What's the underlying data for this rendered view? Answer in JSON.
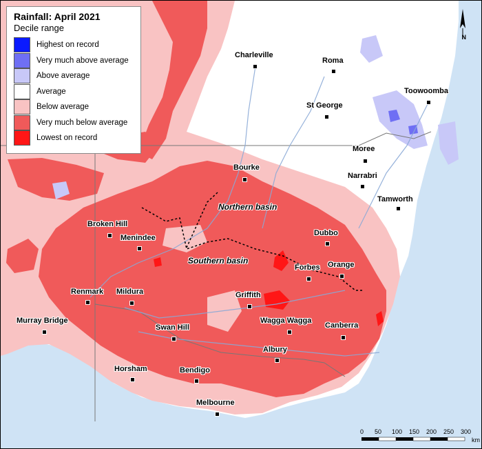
{
  "legend": {
    "title": "Rainfall: April 2021",
    "subtitle": "Decile range",
    "items": [
      {
        "label": "Highest on record",
        "color": "#0a1aff"
      },
      {
        "label": "Very much above average",
        "color": "#6f6ff4"
      },
      {
        "label": "Above average",
        "color": "#c8c8f8"
      },
      {
        "label": "Average",
        "color": "#ffffff"
      },
      {
        "label": "Below average",
        "color": "#f9c3c3"
      },
      {
        "label": "Very much below average",
        "color": "#f05a5a"
      },
      {
        "label": "Lowest on record",
        "color": "#ff1616"
      }
    ]
  },
  "places": {
    "charleville": "Charleville",
    "roma": "Roma",
    "toowoomba": "Toowoomba",
    "st_george": "St George",
    "moree": "Moree",
    "bourke": "Bourke",
    "narrabri": "Narrabri",
    "tamworth": "Tamworth",
    "broken_hill": "Broken Hill",
    "menindee": "Menindee",
    "dubbo": "Dubbo",
    "forbes": "Forbes",
    "orange": "Orange",
    "renmark": "Renmark",
    "mildura": "Mildura",
    "griffith": "Griffith",
    "murray_bridge": "Murray Bridge",
    "wagga_wagga": "Wagga Wagga",
    "canberra": "Canberra",
    "swan_hill": "Swan Hill",
    "albury": "Albury",
    "horsham": "Horsham",
    "bendigo": "Bendigo",
    "melbourne": "Melbourne"
  },
  "basins": {
    "northern": "Northern basin",
    "southern": "Southern basin"
  },
  "scale_bar": {
    "ticks": [
      "0",
      "50",
      "100",
      "150",
      "200",
      "250",
      "300"
    ],
    "unit": "km"
  },
  "north_arrow": {
    "label": "N",
    "icon": "north-arrow-icon"
  }
}
